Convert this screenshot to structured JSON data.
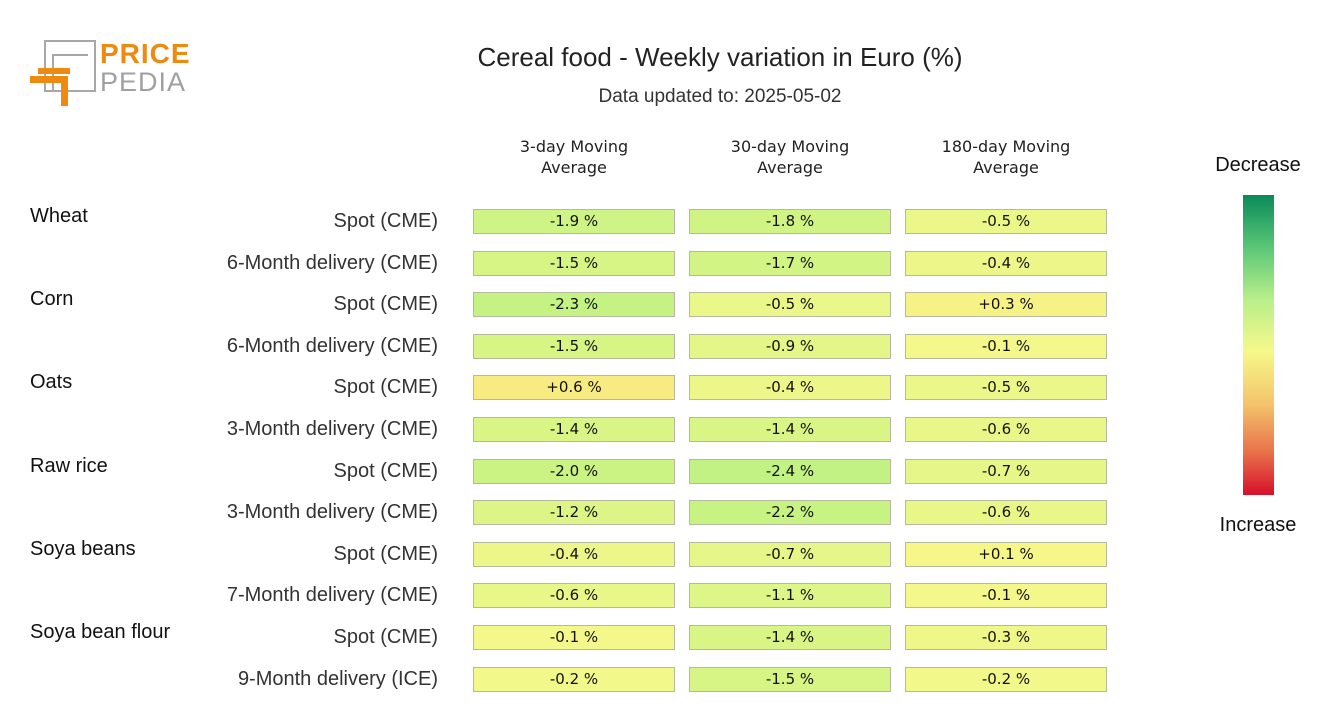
{
  "logo": {
    "line1": "PRICE",
    "line2": "PEDIA"
  },
  "chart_data": {
    "type": "table",
    "title": "Cereal food - Weekly variation in Euro (%)",
    "subtitle": "Data updated to: 2025-05-02",
    "columns": [
      "3-day Moving Average",
      "30-day Moving Average",
      "180-day Moving Average"
    ],
    "column_lines": [
      [
        "3-day Moving",
        "Average"
      ],
      [
        "30-day Moving",
        "Average"
      ],
      [
        "180-day Moving",
        "Average"
      ]
    ],
    "groups": [
      "Wheat",
      "Corn",
      "Oats",
      "Raw rice",
      "Soya beans",
      "Soya bean flour"
    ],
    "rows": [
      {
        "group": "Wheat",
        "label": "Spot (CME)",
        "values": [
          -1.9,
          -1.8,
          -0.5
        ],
        "texts": [
          "-1.9 %",
          "-1.8 %",
          "-0.5 %"
        ]
      },
      {
        "group": "Wheat",
        "label": "6-Month delivery (CME)",
        "values": [
          -1.5,
          -1.7,
          -0.4
        ],
        "texts": [
          "-1.5 %",
          "-1.7 %",
          "-0.4 %"
        ]
      },
      {
        "group": "Corn",
        "label": "Spot (CME)",
        "values": [
          -2.3,
          -0.5,
          0.3
        ],
        "texts": [
          "-2.3 %",
          "-0.5 %",
          "+0.3 %"
        ]
      },
      {
        "group": "Corn",
        "label": "6-Month delivery (CME)",
        "values": [
          -1.5,
          -0.9,
          -0.1
        ],
        "texts": [
          "-1.5 %",
          "-0.9 %",
          "-0.1 %"
        ]
      },
      {
        "group": "Oats",
        "label": "Spot (CME)",
        "values": [
          0.6,
          -0.4,
          -0.5
        ],
        "texts": [
          "+0.6 %",
          "-0.4 %",
          "-0.5 %"
        ]
      },
      {
        "group": "Oats",
        "label": "3-Month delivery (CME)",
        "values": [
          -1.4,
          -1.4,
          -0.6
        ],
        "texts": [
          "-1.4 %",
          "-1.4 %",
          "-0.6 %"
        ]
      },
      {
        "group": "Raw rice",
        "label": "Spot (CME)",
        "values": [
          -2.0,
          -2.4,
          -0.7
        ],
        "texts": [
          "-2.0 %",
          "-2.4 %",
          "-0.7 %"
        ]
      },
      {
        "group": "Raw rice",
        "label": "3-Month delivery (CME)",
        "values": [
          -1.2,
          -2.2,
          -0.6
        ],
        "texts": [
          "-1.2 %",
          "-2.2 %",
          "-0.6 %"
        ]
      },
      {
        "group": "Soya beans",
        "label": "Spot (CME)",
        "values": [
          -0.4,
          -0.7,
          0.1
        ],
        "texts": [
          "-0.4 %",
          "-0.7 %",
          "+0.1 %"
        ]
      },
      {
        "group": "Soya beans",
        "label": "7-Month delivery (CME)",
        "values": [
          -0.6,
          -1.1,
          -0.1
        ],
        "texts": [
          "-0.6 %",
          "-1.1 %",
          "-0.1 %"
        ]
      },
      {
        "group": "Soya bean flour",
        "label": "Spot (CME)",
        "values": [
          -0.1,
          -1.4,
          -0.3
        ],
        "texts": [
          "-0.1 %",
          "-1.4 %",
          "-0.3 %"
        ]
      },
      {
        "group": "Soya bean flour",
        "label": "9-Month delivery (ICE)",
        "values": [
          -0.2,
          -1.5,
          -0.2
        ],
        "texts": [
          "-0.2 %",
          "-1.5 %",
          "-0.2 %"
        ]
      }
    ],
    "legend": {
      "top": "Decrease",
      "bottom": "Increase"
    },
    "colors": {
      "decrease": "#0a8a5a",
      "neutral": "#f6f88a",
      "increase": "#d6102a"
    }
  }
}
